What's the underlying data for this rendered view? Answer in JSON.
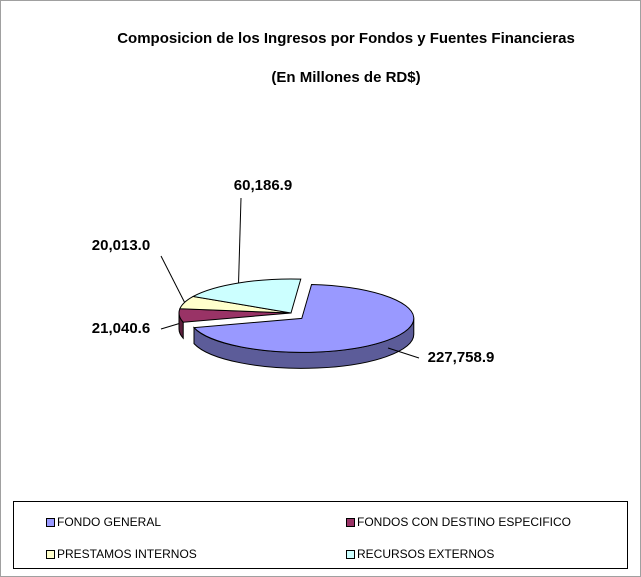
{
  "chart_data": {
    "type": "pie3d",
    "title": "Composicion de los Ingresos por Fondos y Fuentes Financieras",
    "subtitle": "(En Millones de RD$)",
    "categories": [
      "FONDO GENERAL",
      "FONDOS CON DESTINO ESPECIFICO",
      "PRESTAMOS INTERNOS",
      "RECURSOS EXTERNOS"
    ],
    "values": [
      227758.9,
      21040.6,
      20013.0,
      60186.9
    ],
    "value_labels": [
      "227,758.9",
      "21,040.6",
      "20,013.0",
      "60,186.9"
    ],
    "colors": [
      "#9999ff",
      "#993366",
      "#ffffcc",
      "#ccffff"
    ],
    "legend": "bottom"
  }
}
